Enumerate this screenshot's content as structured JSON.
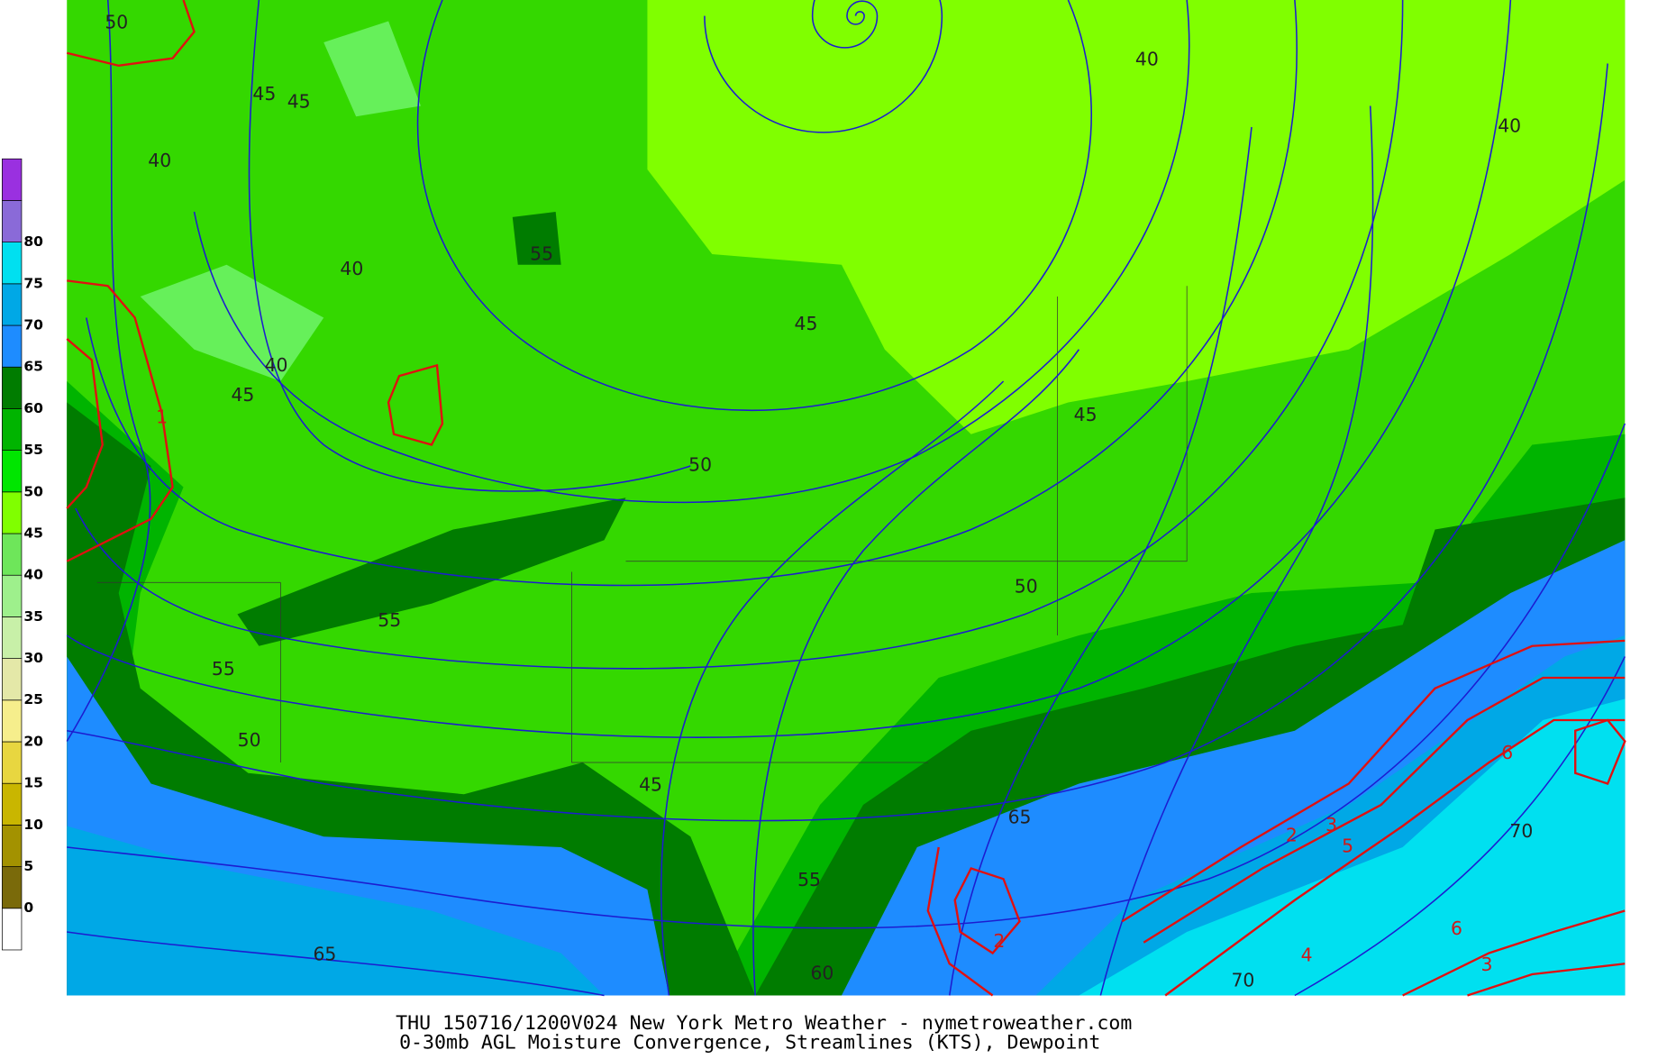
{
  "colorbar": {
    "labels": [
      0,
      5,
      10,
      15,
      20,
      25,
      30,
      35,
      40,
      45,
      50,
      55,
      60,
      65,
      70,
      75,
      80
    ],
    "colors": [
      "#ffffff",
      "#7a6a0a",
      "#a39200",
      "#c9b600",
      "#e8d640",
      "#f6ee8c",
      "#e4e8a8",
      "#c8f0a8",
      "#9ef08c",
      "#6ee65a",
      "#80ff00",
      "#00e600",
      "#00b400",
      "#007c00",
      "#1e8cff",
      "#00a8e6",
      "#00e0f0",
      "#8a6ad8",
      "#9a30e0"
    ]
  },
  "contour_labels": [
    "50",
    "45",
    "45",
    "40",
    "40",
    "55",
    "45",
    "40",
    "45",
    "40",
    "40",
    "45",
    "50",
    "50",
    "55",
    "55",
    "50",
    "45",
    "65",
    "70",
    "65",
    "55",
    "60",
    "70",
    "2",
    "3",
    "5",
    "6",
    "6",
    "4",
    "3",
    "2",
    "1"
  ],
  "footer": {
    "line1": "THU 150716/1200V024 New York Metro Weather - nymetroweather.com",
    "line2": "0-30mb AGL Moisture Convergence, Streamlines (KTS), Dewpoint"
  }
}
